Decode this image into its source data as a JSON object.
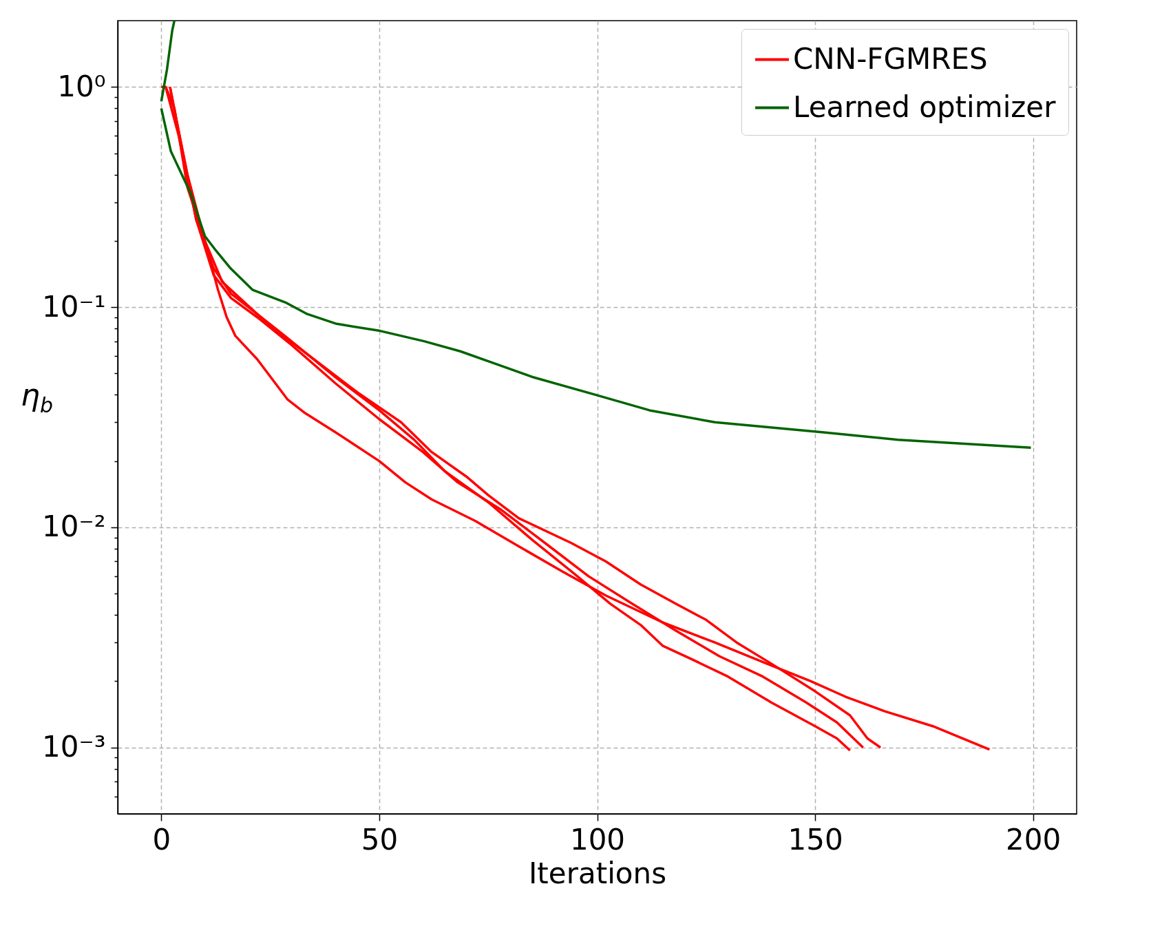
{
  "chart_data": {
    "type": "line",
    "xlabel": "Iterations",
    "ylabel": "η$_{b}$",
    "log": true,
    "grid": true,
    "legend": "top right",
    "xlim": [
      -10,
      210
    ],
    "xticks": [
      0,
      50,
      100,
      150,
      200
    ],
    "ylim": [
      0.0005,
      2
    ],
    "yticks": [
      {
        "value": 0.0006,
        "label": null
      },
      {
        "value": 0.0007,
        "label": null
      },
      {
        "value": 0.0008,
        "label": null
      },
      {
        "value": 0.0009,
        "label": null
      },
      {
        "value": 0.001,
        "label": "10⁻³"
      },
      {
        "value": 0.002,
        "label": null
      },
      {
        "value": 0.003,
        "label": null
      },
      {
        "value": 0.004,
        "label": null
      },
      {
        "value": 0.005,
        "label": null
      },
      {
        "value": 0.006,
        "label": null
      },
      {
        "value": 0.007,
        "label": null
      },
      {
        "value": 0.008,
        "label": null
      },
      {
        "value": 0.009,
        "label": null
      },
      {
        "value": 0.01,
        "label": "10⁻²"
      },
      {
        "value": 0.02,
        "label": null
      },
      {
        "value": 0.03,
        "label": null
      },
      {
        "value": 0.04,
        "label": null
      },
      {
        "value": 0.05,
        "label": null
      },
      {
        "value": 0.06,
        "label": null
      },
      {
        "value": 0.07,
        "label": null
      },
      {
        "value": 0.08,
        "label": null
      },
      {
        "value": 0.09,
        "label": null
      },
      {
        "value": 0.1,
        "label": "10⁻¹"
      },
      {
        "value": 0.2,
        "label": null
      },
      {
        "value": 0.3,
        "label": null
      },
      {
        "value": 0.4,
        "label": null
      },
      {
        "value": 0.5,
        "label": null
      },
      {
        "value": 0.6,
        "label": null
      },
      {
        "value": 0.7,
        "label": null
      },
      {
        "value": 0.8,
        "label": null
      },
      {
        "value": 0.9,
        "label": null
      },
      {
        "value": 1,
        "label": "10⁰"
      }
    ],
    "series": [
      {
        "name": "CNN-FGMRES",
        "color": "#ff0000",
        "x": [
          0,
          1,
          3,
          6,
          10,
          13,
          15,
          17,
          22,
          29,
          33,
          40,
          50,
          56,
          62,
          72,
          82,
          92,
          102,
          115,
          127,
          139,
          149,
          157,
          166,
          177,
          190
        ],
        "values": [
          1,
          1,
          0.8,
          0.35,
          0.2,
          0.12,
          0.09,
          0.074,
          0.058,
          0.038,
          0.033,
          0.027,
          0.02,
          0.016,
          0.0134,
          0.0107,
          0.0082,
          0.0063,
          0.0049,
          0.0037,
          0.003,
          0.0024,
          0.002,
          0.0017,
          0.00146,
          0.00125,
          0.00098
        ]
      },
      {
        "color": "#ff0000",
        "x": [
          2,
          5,
          8,
          12,
          16,
          20,
          28,
          40,
          50,
          58,
          65,
          75,
          85,
          95,
          103,
          110,
          115,
          122,
          130,
          140,
          150,
          155,
          158
        ],
        "values": [
          1,
          0.5,
          0.25,
          0.15,
          0.115,
          0.1,
          0.075,
          0.048,
          0.034,
          0.025,
          0.018,
          0.013,
          0.0088,
          0.0061,
          0.0045,
          0.0036,
          0.0029,
          0.0025,
          0.0021,
          0.0016,
          0.00125,
          0.0011,
          0.00097
        ]
      },
      {
        "color": "#ff0000",
        "x": [
          1,
          4,
          8,
          12,
          16,
          22,
          30,
          40,
          50,
          60,
          68,
          78,
          88,
          98,
          108,
          118,
          128,
          138,
          148,
          155,
          161
        ],
        "values": [
          1,
          0.6,
          0.25,
          0.14,
          0.11,
          0.09,
          0.067,
          0.045,
          0.031,
          0.022,
          0.016,
          0.012,
          0.0085,
          0.006,
          0.0045,
          0.0034,
          0.0026,
          0.0021,
          0.0016,
          0.0013,
          0.001
        ]
      },
      {
        "color": "#ff0000",
        "x": [
          2,
          3,
          6,
          10,
          14,
          18,
          25,
          35,
          45,
          55,
          62,
          70,
          75,
          82,
          94,
          102,
          110,
          118,
          125,
          132,
          140,
          150,
          158,
          162,
          165
        ],
        "values": [
          1,
          0.78,
          0.4,
          0.2,
          0.13,
          0.11,
          0.082,
          0.058,
          0.041,
          0.03,
          0.022,
          0.017,
          0.014,
          0.011,
          0.0085,
          0.007,
          0.0055,
          0.0045,
          0.0038,
          0.003,
          0.0024,
          0.0018,
          0.0014,
          0.0011,
          0.001
        ]
      },
      {
        "name": "Learned optimizer",
        "color": "#006400",
        "x": [
          0,
          2.2,
          6.7,
          10,
          12.6,
          15.9,
          20.9,
          28.5,
          33.5,
          40.2,
          50.2,
          60.3,
          68.6,
          77,
          85.4,
          99.6,
          112,
          127,
          152,
          169,
          199.5
        ],
        "values": [
          0.8,
          0.51,
          0.33,
          0.21,
          0.18,
          0.15,
          0.12,
          0.105,
          0.093,
          0.084,
          0.078,
          0.07,
          0.063,
          0.055,
          0.048,
          0.04,
          0.034,
          0.03,
          0.027,
          0.025,
          0.023
        ]
      },
      {
        "color": "#006400",
        "x": [
          0,
          1.3,
          2.5,
          3
        ],
        "values": [
          0.86,
          1.2,
          1.8,
          2
        ]
      }
    ]
  }
}
